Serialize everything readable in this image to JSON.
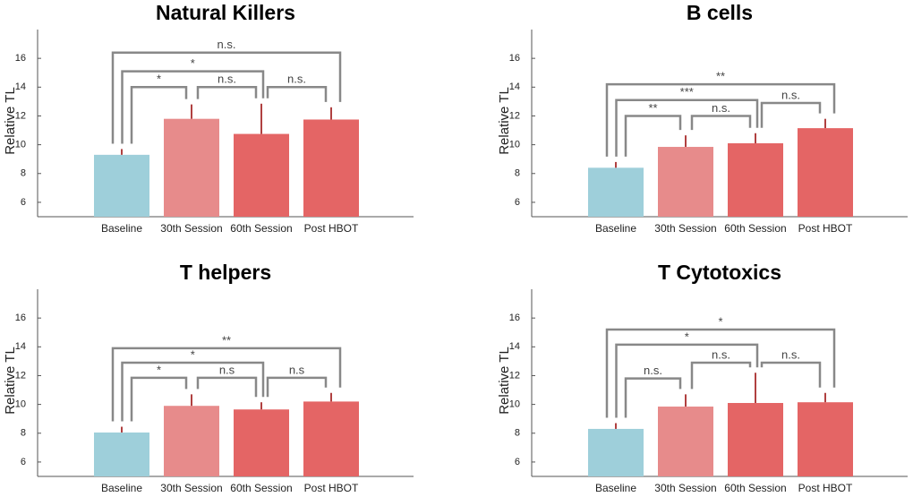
{
  "chart_data": [
    {
      "type": "bar",
      "title": "Natural Killers",
      "ylabel": "Relative TL",
      "categories": [
        "Baseline",
        "30th Session",
        "60th Session",
        "Post HBOT"
      ],
      "values": [
        9.3,
        11.8,
        10.75,
        11.75
      ],
      "errors": [
        0.4,
        1.0,
        2.1,
        0.85
      ],
      "colors": [
        "#9ecfda",
        "#e78b8b",
        "#e46565",
        "#e46565"
      ],
      "error_color": "#b04040",
      "ylim": [
        5,
        18
      ],
      "yticks": [
        6,
        8,
        10,
        12,
        14,
        16
      ],
      "brackets": [
        {
          "text": "n.s.",
          "from": 0,
          "to": 3,
          "level": 16.4
        },
        {
          "text": "*",
          "from": 0,
          "to": 2,
          "level": 15.1
        },
        {
          "text": "*",
          "from": 0,
          "to": 1,
          "level": 14.0
        },
        {
          "text": "n.s.",
          "from": 1,
          "to": 2,
          "level": 14.0
        },
        {
          "text": "n.s.",
          "from": 2,
          "to": 3,
          "level": 14.0
        }
      ]
    },
    {
      "type": "bar",
      "title": "B cells",
      "ylabel": "Relative TL",
      "categories": [
        "Baseline",
        "30th Session",
        "60th Session",
        "Post HBOT"
      ],
      "values": [
        8.4,
        9.85,
        10.1,
        11.15
      ],
      "errors": [
        0.4,
        0.8,
        0.7,
        0.65
      ],
      "colors": [
        "#9ecfda",
        "#e78b8b",
        "#e46565",
        "#e46565"
      ],
      "error_color": "#b04040",
      "ylim": [
        5,
        18
      ],
      "yticks": [
        6,
        8,
        10,
        12,
        14,
        16
      ],
      "brackets": [
        {
          "text": "**",
          "from": 0,
          "to": 3,
          "level": 14.2
        },
        {
          "text": "***",
          "from": 0,
          "to": 2,
          "level": 13.1
        },
        {
          "text": "**",
          "from": 0,
          "to": 1,
          "level": 12.0
        },
        {
          "text": "n.s.",
          "from": 1,
          "to": 2,
          "level": 12.0
        },
        {
          "text": "n.s.",
          "from": 2,
          "to": 3,
          "level": 12.9
        }
      ]
    },
    {
      "type": "bar",
      "title": "T helpers",
      "ylabel": "Relative TL",
      "categories": [
        "Baseline",
        "30th Session",
        "60th Session",
        "Post HBOT"
      ],
      "values": [
        8.05,
        9.9,
        9.65,
        10.2
      ],
      "errors": [
        0.4,
        0.8,
        0.5,
        0.6
      ],
      "colors": [
        "#9ecfda",
        "#e78b8b",
        "#e46565",
        "#e46565"
      ],
      "error_color": "#b04040",
      "ylim": [
        5,
        18
      ],
      "yticks": [
        6,
        8,
        10,
        12,
        14,
        16
      ],
      "brackets": [
        {
          "text": "**",
          "from": 0,
          "to": 3,
          "level": 13.9
        },
        {
          "text": "*",
          "from": 0,
          "to": 2,
          "level": 12.9
        },
        {
          "text": "*",
          "from": 0,
          "to": 1,
          "level": 11.85
        },
        {
          "text": "n.s",
          "from": 1,
          "to": 2,
          "level": 11.85
        },
        {
          "text": "n.s",
          "from": 2,
          "to": 3,
          "level": 11.85
        }
      ]
    },
    {
      "type": "bar",
      "title": "T Cytotoxics",
      "ylabel": "Relative TL",
      "categories": [
        "Baseline",
        "30th Session",
        "60th Session",
        "Post HBOT"
      ],
      "values": [
        8.3,
        9.85,
        10.1,
        10.15
      ],
      "errors": [
        0.4,
        0.85,
        2.1,
        0.65
      ],
      "colors": [
        "#9ecfda",
        "#e78b8b",
        "#e46565",
        "#e46565"
      ],
      "error_color": "#b04040",
      "ylim": [
        5,
        18
      ],
      "yticks": [
        6,
        8,
        10,
        12,
        14,
        16
      ],
      "brackets": [
        {
          "text": "*",
          "from": 0,
          "to": 3,
          "level": 15.2
        },
        {
          "text": "*",
          "from": 0,
          "to": 2,
          "level": 14.15
        },
        {
          "text": "n.s.",
          "from": 0,
          "to": 1,
          "level": 11.8
        },
        {
          "text": "n.s.",
          "from": 1,
          "to": 2,
          "level": 12.9
        },
        {
          "text": "n.s.",
          "from": 2,
          "to": 3,
          "level": 12.9
        }
      ]
    }
  ]
}
